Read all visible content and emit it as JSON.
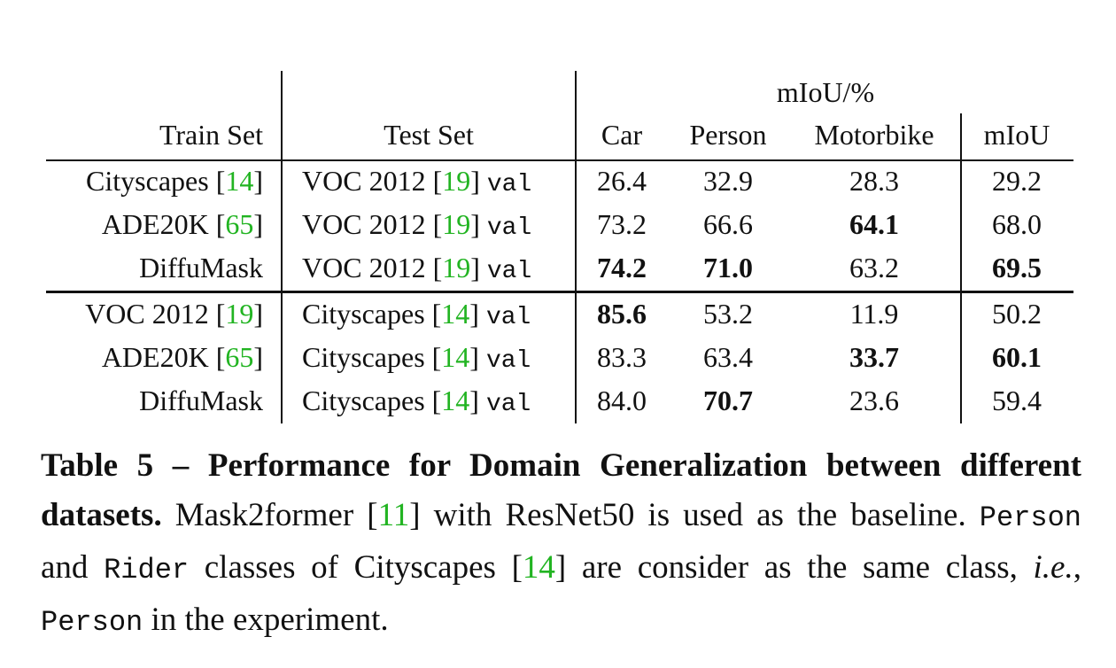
{
  "table": {
    "group_header": "mIoU/%",
    "headers": {
      "train_set": "Train Set",
      "test_set": "Test Set",
      "car": "Car",
      "person": "Person",
      "motorbike": "Motorbike",
      "miou": "mIoU"
    },
    "rows": [
      {
        "train": {
          "name": "Cityscapes",
          "cite_open": " [",
          "cite": "14",
          "cite_close": "]"
        },
        "test": {
          "name": "VOC 2012",
          "cite_open": " [",
          "cite": "19",
          "cite_close": "]",
          "split": "val"
        },
        "car": "26.4",
        "person": "32.9",
        "motorbike": "28.3",
        "miou": "29.2"
      },
      {
        "train": {
          "name": "ADE20K",
          "cite_open": " [",
          "cite": "65",
          "cite_close": "]"
        },
        "test": {
          "name": "VOC 2012",
          "cite_open": " [",
          "cite": "19",
          "cite_close": "]",
          "split": "val"
        },
        "car": "73.2",
        "person": "66.6",
        "motorbike": "64.1",
        "miou": "68.0"
      },
      {
        "train": {
          "name": "DiffuMask"
        },
        "test": {
          "name": "VOC 2012",
          "cite_open": " [",
          "cite": "19",
          "cite_close": "]",
          "split": "val"
        },
        "car": "74.2",
        "person": "71.0",
        "motorbike": "63.2",
        "miou": "69.5"
      },
      {
        "train": {
          "name": "VOC 2012",
          "cite_open": " [",
          "cite": "19",
          "cite_close": "]"
        },
        "test": {
          "name": "Cityscapes",
          "cite_open": " [",
          "cite": "14",
          "cite_close": "]",
          "split": "val"
        },
        "car": "85.6",
        "person": "53.2",
        "motorbike": "11.9",
        "miou": "50.2"
      },
      {
        "train": {
          "name": "ADE20K",
          "cite_open": " [",
          "cite": "65",
          "cite_close": "]"
        },
        "test": {
          "name": "Cityscapes",
          "cite_open": " [",
          "cite": "14",
          "cite_close": "]",
          "split": "val"
        },
        "car": "83.3",
        "person": "63.4",
        "motorbike": "33.7",
        "miou": "60.1"
      },
      {
        "train": {
          "name": "DiffuMask"
        },
        "test": {
          "name": "Cityscapes",
          "cite_open": " [",
          "cite": "14",
          "cite_close": "]",
          "split": "val"
        },
        "car": "84.0",
        "person": "70.7",
        "motorbike": "23.6",
        "miou": "59.4"
      }
    ],
    "bold_cells": [
      "2.motorbike",
      "3.car",
      "3.person",
      "3.miou",
      "4.car",
      "5.motorbike",
      "5.miou",
      "6.person"
    ]
  },
  "caption": {
    "bold_lead": "Table 5 – Performance for Domain Generalization between different datasets.",
    "t1": " Mask2former [",
    "cite1": "11",
    "t2": "] with ResNet50 is used as the baseline. ",
    "mono1": "Person",
    "t3": " and ",
    "mono2": "Rider",
    "t4": " classes of Cityscapes [",
    "cite2": "14",
    "t5": "] are consider as the same class, ",
    "ie": "i.e.",
    "t6": ", ",
    "mono3": "Person",
    "t7": " in the experiment."
  },
  "colors": {
    "citation": "#22b422",
    "text": "#111111",
    "background": "#ffffff"
  }
}
